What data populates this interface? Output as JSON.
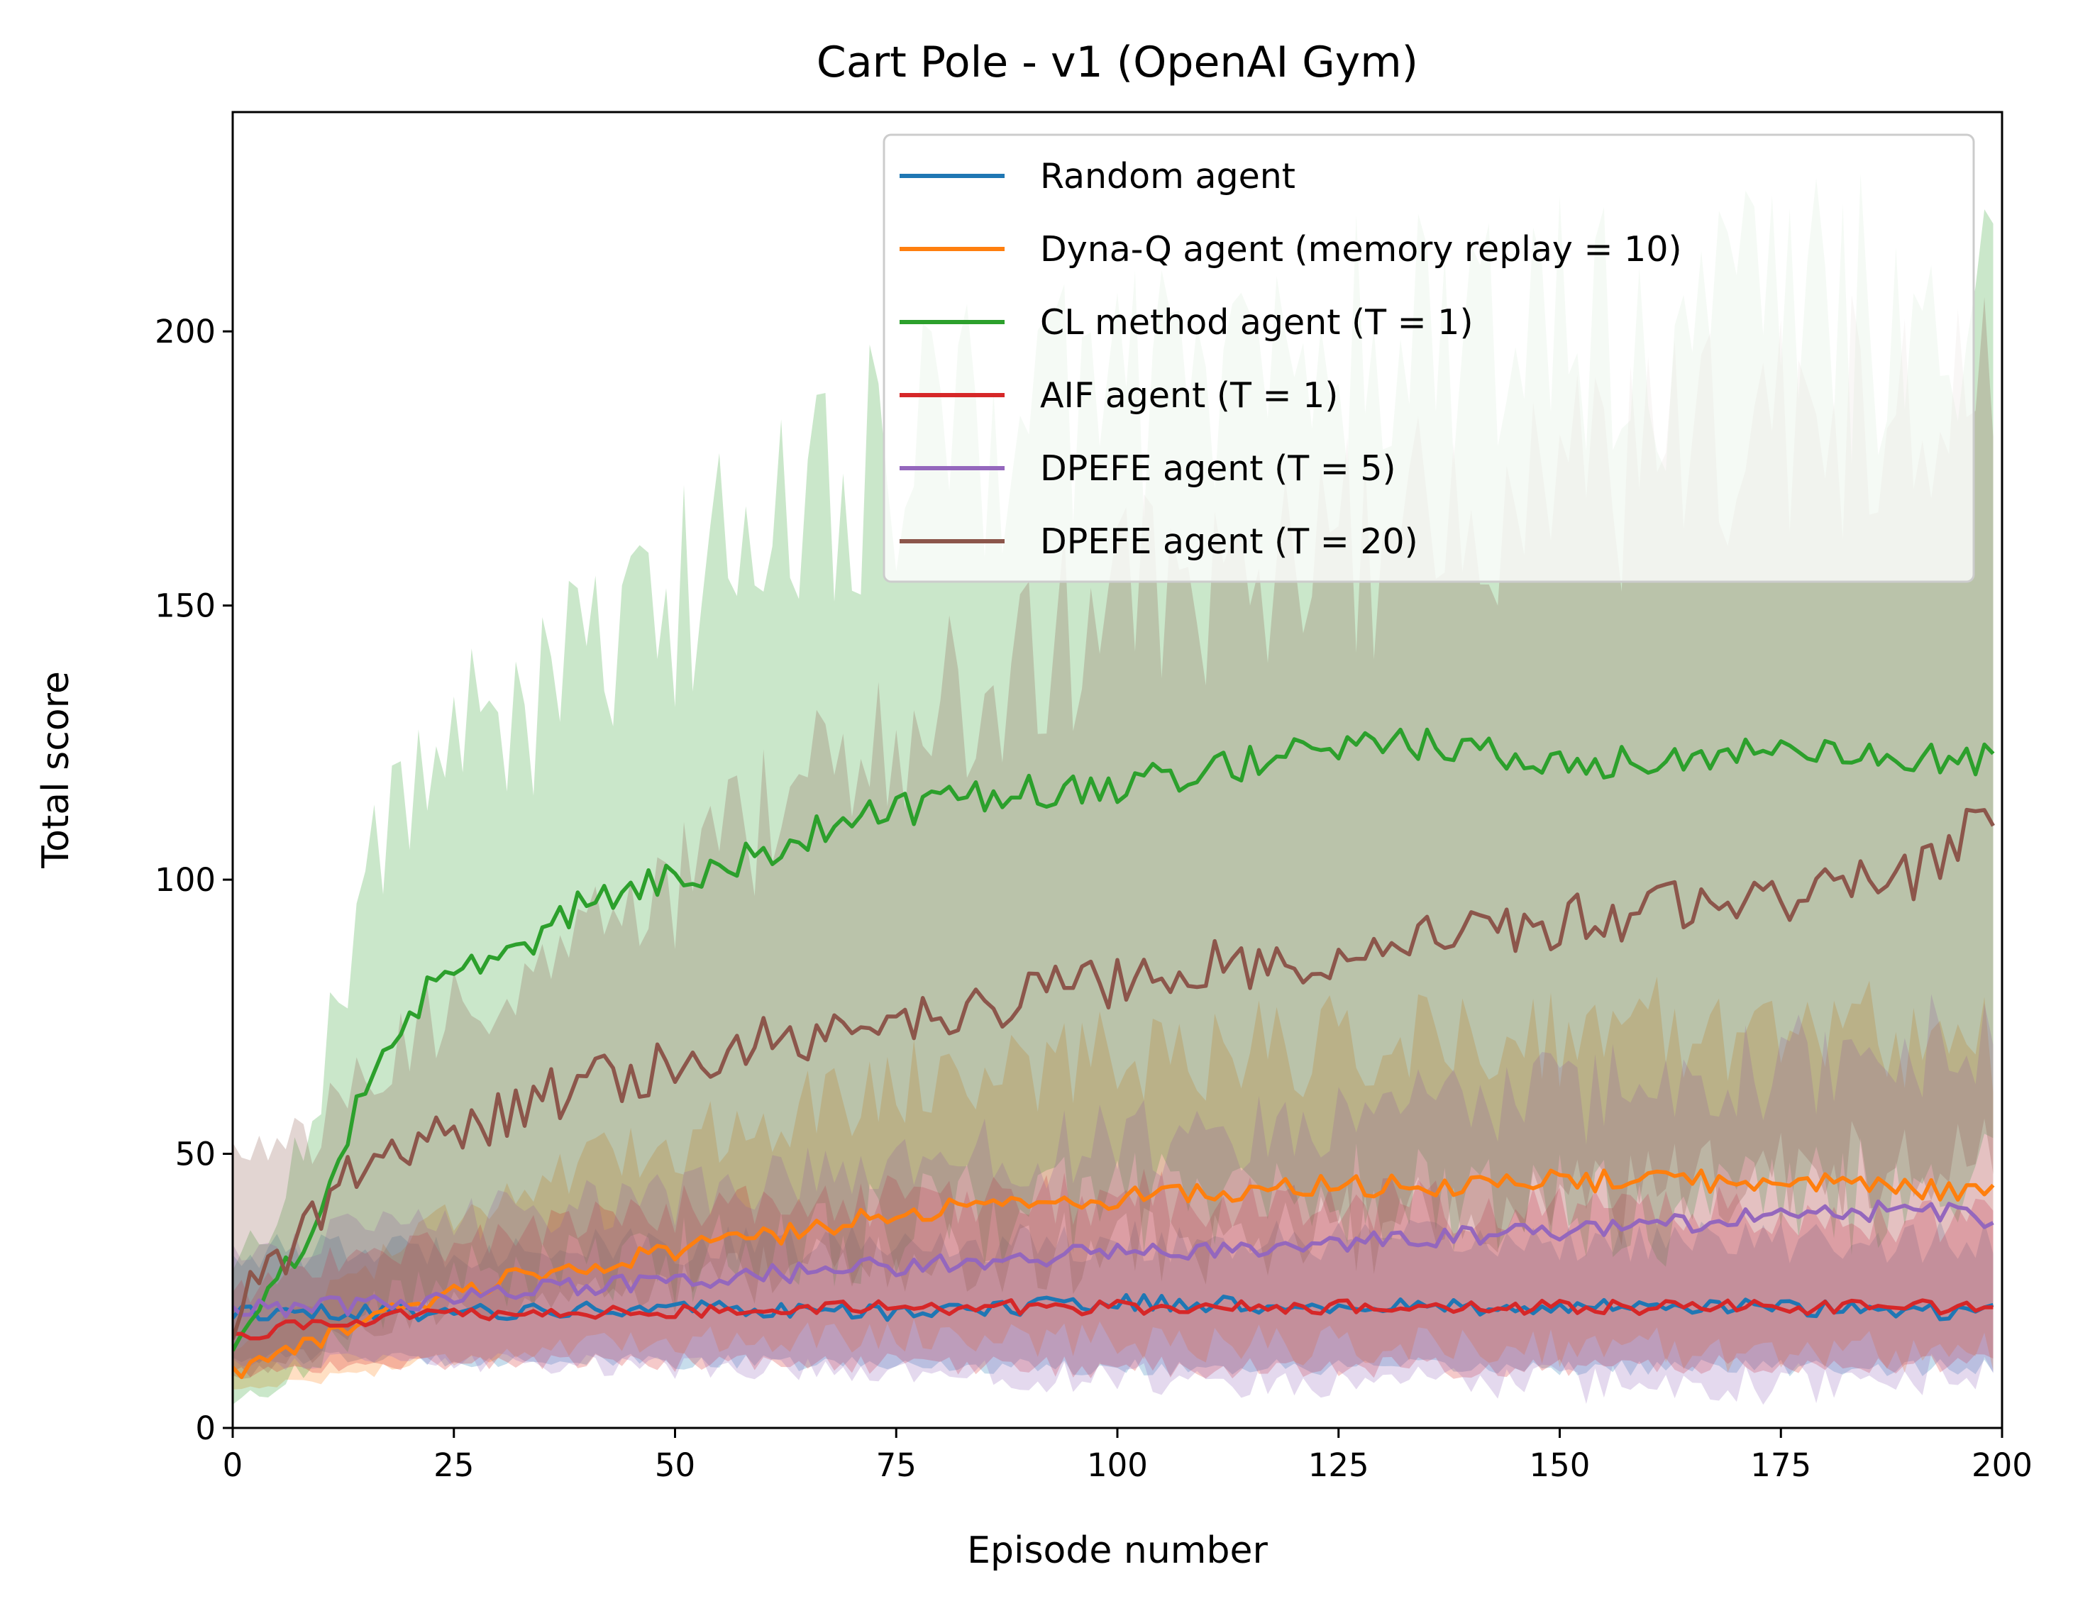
{
  "chart_data": {
    "type": "line",
    "title": "Cart Pole - v1 (OpenAI Gym)",
    "xlabel": "Episode number",
    "ylabel": "Total score",
    "xlim": [
      0,
      200
    ],
    "ylim": [
      0,
      240
    ],
    "xticks": [
      0,
      25,
      50,
      75,
      100,
      125,
      150,
      175,
      200
    ],
    "yticks": [
      0,
      50,
      100,
      150,
      200
    ],
    "grid": false,
    "legend_position": "top-right",
    "series": [
      {
        "name": "Random agent",
        "color": "#1f77b4",
        "anchors": [
          [
            0,
            21
          ],
          [
            25,
            21
          ],
          [
            50,
            22
          ],
          [
            75,
            21
          ],
          [
            100,
            23
          ],
          [
            125,
            22
          ],
          [
            150,
            22
          ],
          [
            175,
            22
          ],
          [
            199,
            21
          ]
        ],
        "noise": 1.5,
        "band_anchors": [
          [
            0,
            [
              13,
              32
            ]
          ],
          [
            50,
            [
              12,
              33
            ]
          ],
          [
            100,
            [
              11,
              34
            ]
          ],
          [
            150,
            [
              11,
              34
            ]
          ],
          [
            199,
            [
              11,
              34
            ]
          ]
        ]
      },
      {
        "name": "Dyna-Q agent (memory replay = 10)",
        "color": "#ff7f0e",
        "anchors": [
          [
            0,
            10
          ],
          [
            10,
            16
          ],
          [
            20,
            22
          ],
          [
            30,
            27
          ],
          [
            40,
            30
          ],
          [
            50,
            32
          ],
          [
            60,
            35
          ],
          [
            70,
            38
          ],
          [
            80,
            40
          ],
          [
            90,
            41
          ],
          [
            100,
            42
          ],
          [
            110,
            43
          ],
          [
            120,
            44
          ],
          [
            130,
            44
          ],
          [
            150,
            45
          ],
          [
            175,
            45
          ],
          [
            199,
            43
          ]
        ],
        "noise": 2.0,
        "band_anchors": [
          [
            0,
            [
              7,
              14
            ]
          ],
          [
            10,
            [
              9,
              24
            ]
          ],
          [
            25,
            [
              13,
              40
            ]
          ],
          [
            50,
            [
              16,
              52
            ]
          ],
          [
            75,
            [
              17,
              63
            ]
          ],
          [
            100,
            [
              16,
              68
            ]
          ],
          [
            125,
            [
              15,
              70
            ]
          ],
          [
            150,
            [
              15,
              72
            ]
          ],
          [
            175,
            [
              14,
              74
            ]
          ],
          [
            199,
            [
              14,
              70
            ]
          ]
        ]
      },
      {
        "name": "CL method agent (T = 1)",
        "color": "#2ca02c",
        "anchors": [
          [
            0,
            15
          ],
          [
            5,
            26
          ],
          [
            10,
            40
          ],
          [
            15,
            62
          ],
          [
            20,
            76
          ],
          [
            25,
            84
          ],
          [
            30,
            86
          ],
          [
            35,
            90
          ],
          [
            40,
            97
          ],
          [
            45,
            98
          ],
          [
            50,
            100
          ],
          [
            55,
            102
          ],
          [
            60,
            105
          ],
          [
            65,
            108
          ],
          [
            70,
            111
          ],
          [
            80,
            114
          ],
          [
            90,
            116
          ],
          [
            100,
            117
          ],
          [
            110,
            120
          ],
          [
            125,
            124
          ],
          [
            135,
            125
          ],
          [
            150,
            121
          ],
          [
            175,
            123
          ],
          [
            199,
            122
          ]
        ],
        "noise": 3.0,
        "band_anchors": [
          [
            0,
            [
              4,
              28
            ]
          ],
          [
            5,
            [
              8,
              40
            ]
          ],
          [
            10,
            [
              14,
              65
            ]
          ],
          [
            15,
            [
              20,
              100
            ]
          ],
          [
            20,
            [
              25,
              118
            ]
          ],
          [
            30,
            [
              28,
              130
            ]
          ],
          [
            40,
            [
              28,
              138
            ]
          ],
          [
            50,
            [
              30,
              150
            ]
          ],
          [
            60,
            [
              33,
              168
            ]
          ],
          [
            70,
            [
              35,
              174
            ]
          ],
          [
            80,
            [
              38,
              180
            ]
          ],
          [
            90,
            [
              40,
              185
            ]
          ],
          [
            100,
            [
              42,
              190
            ]
          ],
          [
            125,
            [
              42,
              196
            ]
          ],
          [
            150,
            [
              40,
              200
            ]
          ],
          [
            175,
            [
              40,
              202
            ]
          ],
          [
            199,
            [
              45,
              200
            ]
          ]
        ]
      },
      {
        "name": "AIF agent (T = 1)",
        "color": "#d62728",
        "anchors": [
          [
            0,
            16
          ],
          [
            5,
            18
          ],
          [
            10,
            19
          ],
          [
            15,
            20
          ],
          [
            25,
            21
          ],
          [
            50,
            21
          ],
          [
            75,
            22
          ],
          [
            100,
            22
          ],
          [
            125,
            22
          ],
          [
            150,
            22
          ],
          [
            175,
            22
          ],
          [
            199,
            22
          ]
        ],
        "noise": 1.3,
        "band_anchors": [
          [
            0,
            [
              10,
              24
            ]
          ],
          [
            10,
            [
              11,
              30
            ]
          ],
          [
            25,
            [
              12,
              34
            ]
          ],
          [
            50,
            [
              12,
              40
            ]
          ],
          [
            100,
            [
              11,
              42
            ]
          ],
          [
            150,
            [
              11,
              40
            ]
          ],
          [
            199,
            [
              12,
              38
            ]
          ]
        ]
      },
      {
        "name": "DPEFE agent (T = 5)",
        "color": "#9467bd",
        "anchors": [
          [
            0,
            22
          ],
          [
            10,
            22
          ],
          [
            20,
            23
          ],
          [
            30,
            25
          ],
          [
            40,
            26
          ],
          [
            50,
            27
          ],
          [
            60,
            28
          ],
          [
            70,
            29
          ],
          [
            80,
            30
          ],
          [
            90,
            31
          ],
          [
            100,
            32
          ],
          [
            110,
            32
          ],
          [
            120,
            33
          ],
          [
            130,
            34
          ],
          [
            140,
            35
          ],
          [
            150,
            36
          ],
          [
            160,
            37
          ],
          [
            170,
            38
          ],
          [
            180,
            39
          ],
          [
            190,
            40
          ],
          [
            199,
            38
          ]
        ],
        "noise": 1.8,
        "band_anchors": [
          [
            0,
            [
              12,
              32
            ]
          ],
          [
            25,
            [
              12,
              38
            ]
          ],
          [
            50,
            [
              11,
              42
            ]
          ],
          [
            75,
            [
              10,
              48
            ]
          ],
          [
            100,
            [
              9,
              52
            ]
          ],
          [
            125,
            [
              8,
              56
            ]
          ],
          [
            150,
            [
              8,
              60
            ]
          ],
          [
            175,
            [
              8,
              66
            ]
          ],
          [
            199,
            [
              10,
              70
            ]
          ]
        ]
      },
      {
        "name": "DPEFE agent (T = 20)",
        "color": "#8c564b",
        "anchors": [
          [
            0,
            20
          ],
          [
            5,
            30
          ],
          [
            10,
            40
          ],
          [
            15,
            48
          ],
          [
            20,
            53
          ],
          [
            25,
            54
          ],
          [
            30,
            57
          ],
          [
            35,
            60
          ],
          [
            40,
            63
          ],
          [
            45,
            64
          ],
          [
            50,
            66
          ],
          [
            55,
            68
          ],
          [
            60,
            70
          ],
          [
            65,
            71
          ],
          [
            70,
            72
          ],
          [
            75,
            74
          ],
          [
            80,
            75
          ],
          [
            85,
            77
          ],
          [
            90,
            78
          ],
          [
            95,
            80
          ],
          [
            100,
            82
          ],
          [
            110,
            84
          ],
          [
            120,
            86
          ],
          [
            130,
            88
          ],
          [
            140,
            90
          ],
          [
            150,
            92
          ],
          [
            160,
            94
          ],
          [
            170,
            96
          ],
          [
            180,
            98
          ],
          [
            190,
            100
          ],
          [
            199,
            113
          ]
        ],
        "noise": 5.0,
        "band_anchors": [
          [
            0,
            [
              8,
              48
            ]
          ],
          [
            10,
            [
              15,
              55
            ]
          ],
          [
            25,
            [
              22,
              76
            ]
          ],
          [
            50,
            [
              26,
              100
            ]
          ],
          [
            75,
            [
              30,
              125
            ]
          ],
          [
            100,
            [
              32,
              150
            ]
          ],
          [
            125,
            [
              36,
              160
            ]
          ],
          [
            150,
            [
              40,
              170
            ]
          ],
          [
            175,
            [
              45,
              180
            ]
          ],
          [
            199,
            [
              50,
              190
            ]
          ]
        ]
      }
    ]
  }
}
